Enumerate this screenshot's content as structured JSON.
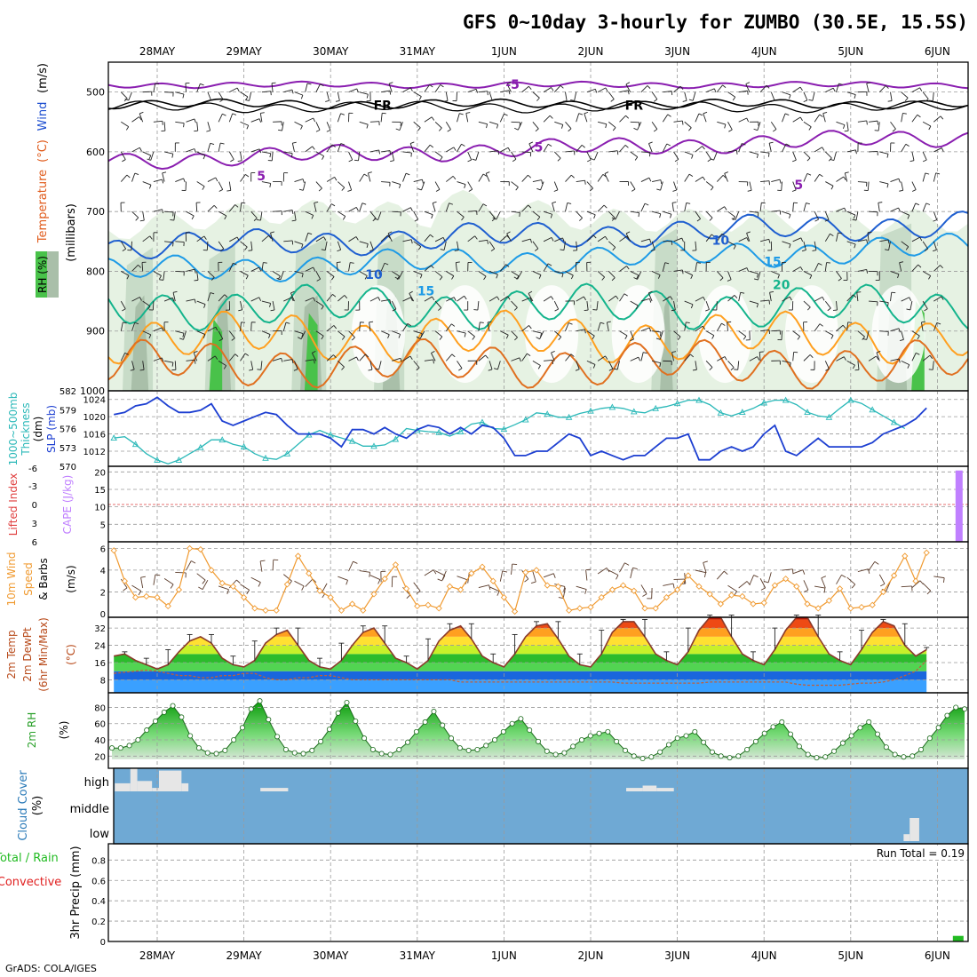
{
  "header": {
    "title": "GFS 0~10day 3-hourly for ZUMBO (30.5E, 15.5S)"
  },
  "footer": {
    "credit": "GrADS: COLA/IGES"
  },
  "colors": {
    "frame": "#000000",
    "grid": "#9a9a9a",
    "rh_light": "#e6f2e3",
    "rh_mid": "#c8dcc8",
    "rh_dark": "#a9bfa9",
    "rh_green": "#49c24a",
    "iso_m5": "#8a1eb0",
    "iso_fr": "#000000",
    "iso_10": "#1f5fd0",
    "iso_15": "#1e9be6",
    "iso_20": "#14b48c",
    "iso_25": "#ffa020",
    "iso_30": "#e07020",
    "slp": "#1d3fd1",
    "thick": "#2ab8b8",
    "li": "#e04040",
    "cape": "#c080ff",
    "wind10": "#f09a30",
    "temp_line": "#8a3a2a",
    "rh2m": "#2aa02a",
    "cloud_bg": "#6fa9d4",
    "cloud_bar": "#e6e6e6",
    "precip": "#22bb22"
  },
  "chart_data": [
    {
      "id": "upper_air",
      "type": "heatmap",
      "ylabel_parts": [
        "RH (%)",
        "Temperature",
        "(°C)",
        "Wind",
        "(m/s)"
      ],
      "ylabel_units": "(millibars)",
      "y_ticks": [
        500,
        600,
        700,
        800,
        900,
        1000
      ],
      "ylim": [
        450,
        1000
      ],
      "x_days": [
        "28MAY",
        "29MAY",
        "30MAY",
        "31MAY",
        "1JUN",
        "2JUN",
        "3JUN",
        "4JUN",
        "5JUN",
        "6JUN"
      ],
      "isotherm_labels": [
        {
          "t": 4.1,
          "p": 487,
          "text": "-5",
          "color_key": "iso_m5"
        },
        {
          "t": 2.6,
          "p": 522,
          "text": "FR",
          "color_key": "iso_fr"
        },
        {
          "t": 5.5,
          "p": 522,
          "text": "FR",
          "color_key": "iso_fr"
        },
        {
          "t": 4.4,
          "p": 592,
          "text": "5",
          "color_key": "iso_m5"
        },
        {
          "t": 1.2,
          "p": 640,
          "text": "5",
          "color_key": "iso_m5"
        },
        {
          "t": 7.4,
          "p": 655,
          "text": "5",
          "color_key": "iso_m5"
        },
        {
          "t": 6.5,
          "p": 748,
          "text": "10",
          "color_key": "iso_10"
        },
        {
          "t": 2.5,
          "p": 805,
          "text": "10",
          "color_key": "iso_10"
        },
        {
          "t": 7.1,
          "p": 784,
          "text": "15",
          "color_key": "iso_15"
        },
        {
          "t": 3.1,
          "p": 833,
          "text": "15",
          "color_key": "iso_15"
        },
        {
          "t": 7.2,
          "p": 822,
          "text": "20",
          "color_key": "iso_20"
        }
      ]
    },
    {
      "id": "slp_thickness",
      "type": "line",
      "ylabel_left": [
        "1000~500mb",
        "Thickness",
        "(dm)"
      ],
      "ylabel_right": "SLP (mb)",
      "left_ticks": [
        570,
        573,
        576,
        579,
        582
      ],
      "right_ticks": [
        1012,
        1016,
        1020,
        1024
      ],
      "ylim_slp": [
        1008.5,
        1026
      ],
      "ylim_thick": [
        570,
        582
      ],
      "series": [
        {
          "name": "SLP (mb)",
          "color_key": "slp",
          "values": [
            1020.5,
            1021,
            1022.5,
            1023,
            1024.5,
            1022.5,
            1021,
            1021,
            1021.5,
            1023,
            1019,
            1018,
            1019,
            1020,
            1021,
            1020.5,
            1018,
            1016,
            1016,
            1016,
            1015,
            1013,
            1017,
            1017,
            1016,
            1017.5,
            1016,
            1015,
            1017,
            1018,
            1017.5,
            1016,
            1017.5,
            1016,
            1018,
            1017.5,
            1015,
            1011,
            1011,
            1012,
            1012,
            1014,
            1016,
            1015,
            1011,
            1012,
            1011,
            1010,
            1011,
            1011,
            1013,
            1015,
            1015,
            1016,
            1010,
            1010,
            1012,
            1013,
            1012,
            1013,
            1016,
            1018,
            1012,
            1011,
            1013,
            1015,
            1013,
            1013,
            1013,
            1013,
            1014,
            1016,
            1017,
            1018,
            1019.5,
            1022
          ]
        },
        {
          "name": "1000~500mb Thickness (dm)",
          "color_key": "thick",
          "values": [
            574.5,
            574.7,
            573.5,
            572,
            571,
            570.4,
            571,
            572,
            573,
            574.2,
            574.2,
            573.5,
            573.1,
            572,
            571.3,
            571.1,
            572,
            573.5,
            575,
            575.7,
            575,
            574.5,
            574,
            573.2,
            573.2,
            573.4,
            574.3,
            576,
            575.7,
            575.5,
            575.4,
            574.8,
            575.5,
            576.7,
            577,
            576,
            575.9,
            576.6,
            577.4,
            578.5,
            578.3,
            577.8,
            577.8,
            578.4,
            578.8,
            579.2,
            579.4,
            579.2,
            578.7,
            578.5,
            579.2,
            579.5,
            580,
            580.5,
            580.5,
            579.8,
            578.5,
            578,
            578.6,
            579.2,
            580.1,
            580.5,
            580.5,
            579.8,
            578.6,
            578,
            577.8,
            579.2,
            580.5,
            580,
            579,
            578,
            577,
            576
          ]
        }
      ]
    },
    {
      "id": "stability",
      "type": "line",
      "ylabel_left": [
        "Lifted Index"
      ],
      "ylabel_right": "CAPE (J/kg)",
      "li_ticks": [
        "-6",
        "-3",
        "0",
        "3",
        "6"
      ],
      "cape_ticks": [
        5,
        10,
        15,
        20
      ],
      "ylim_cape": [
        0,
        21.6
      ],
      "series": [
        {
          "name": "Lifted Index",
          "color_key": "li",
          "values": [
            0
          ]
        },
        {
          "name": "CAPE (J/kg)",
          "color_key": "cape",
          "bars": [
            {
              "t": 9.25,
              "value": 20.4
            }
          ]
        }
      ]
    },
    {
      "id": "wind10m",
      "type": "line",
      "ylabel_left": [
        "10m Wind",
        "Speed",
        "& Barbs",
        "(m/s)"
      ],
      "y_ticks": [
        0,
        2,
        4,
        6
      ],
      "ylim": [
        0,
        6.6
      ],
      "series": [
        {
          "name": "10m Wind Speed",
          "color_key": "wind10",
          "values": [
            5.8,
            3,
            1.5,
            1.6,
            1.5,
            0.7,
            2.2,
            6,
            5.9,
            4,
            2.8,
            2.5,
            1.5,
            0.5,
            0.3,
            0.3,
            2.7,
            5.3,
            3.7,
            2.1,
            1.5,
            0.3,
            0.9,
            0.3,
            1.8,
            3.2,
            4.5,
            2.3,
            0.7,
            0.8,
            0.5,
            2.5,
            2.2,
            3.7,
            4.3,
            3,
            1.5,
            0.2,
            3.8,
            4,
            2.6,
            2.5,
            0.3,
            0.5,
            0.6,
            1.5,
            2.2,
            2.6,
            2.1,
            0.5,
            0.5,
            1.5,
            2.2,
            3.5,
            2.5,
            1.8,
            0.9,
            1.7,
            1.6,
            0.9,
            1,
            2.6,
            3.2,
            2.5,
            0.9,
            0.5,
            1.2,
            2.3,
            0.5,
            0.6,
            0.8,
            2,
            3.5,
            5.3,
            3,
            5.6
          ]
        }
      ]
    },
    {
      "id": "temp2m",
      "type": "area",
      "ylabel_left": [
        "2m Temp",
        "2m DewPt",
        "(6hr Min/Max)",
        "(°C)"
      ],
      "y_ticks": [
        8,
        16,
        24,
        32
      ],
      "ylim": [
        2,
        37
      ],
      "series": [
        {
          "name": "2m Temp",
          "color_key": "temp_line",
          "values": [
            19,
            20,
            17,
            15,
            13,
            15,
            21,
            26,
            28,
            25,
            18,
            15,
            14,
            17,
            25,
            29,
            31,
            24,
            17,
            14,
            13,
            17,
            24,
            30,
            32,
            25,
            18,
            16,
            13,
            17,
            26,
            31,
            33,
            27,
            19,
            16,
            14,
            20,
            28,
            33,
            34,
            27,
            19,
            15,
            14,
            20,
            30,
            35,
            35,
            28,
            20,
            17,
            15,
            21,
            31,
            37,
            37,
            28,
            20,
            17,
            15,
            22,
            31,
            37,
            37,
            28,
            20,
            17,
            15,
            22,
            30,
            35,
            33,
            24,
            19,
            22
          ]
        },
        {
          "name": "2m DewPt",
          "color_key": "temp_line",
          "values": [
            11,
            11.5,
            12,
            12.5,
            12,
            11,
            10,
            10,
            9,
            9,
            10,
            10,
            11,
            11,
            9,
            8,
            8,
            9,
            9,
            10,
            10,
            9,
            8,
            8,
            8,
            8,
            8,
            8,
            8,
            8,
            8,
            8,
            7,
            7,
            7,
            7,
            7,
            7,
            7,
            7,
            7,
            7,
            7,
            7,
            7,
            7,
            7,
            6.5,
            6.5,
            6.5,
            6.5,
            6.5,
            6.5,
            6.5,
            6.5,
            7,
            7,
            7,
            7,
            7,
            7,
            7,
            7,
            6,
            5.5,
            5.5,
            5.5,
            5.5,
            6,
            6.5,
            6.5,
            7,
            8,
            10,
            12,
            17
          ]
        }
      ]
    },
    {
      "id": "rh2m",
      "type": "area",
      "ylabel_left": [
        "2m RH",
        "(%)"
      ],
      "y_ticks": [
        20,
        40,
        60,
        80
      ],
      "ylim": [
        5,
        98
      ],
      "series": [
        {
          "name": "2m RH",
          "color_key": "rh2m",
          "values": [
            30,
            30,
            33,
            40,
            52,
            63,
            74,
            82,
            68,
            45,
            30,
            24,
            23,
            27,
            40,
            55,
            78,
            88,
            65,
            44,
            28,
            24,
            23,
            27,
            38,
            53,
            73,
            86,
            63,
            42,
            28,
            23,
            22,
            28,
            37,
            50,
            62,
            75,
            58,
            42,
            30,
            27,
            28,
            33,
            40,
            50,
            60,
            66,
            52,
            38,
            26,
            22,
            24,
            32,
            40,
            45,
            48,
            50,
            38,
            27,
            20,
            17,
            19,
            25,
            34,
            42,
            45,
            50,
            37,
            25,
            20,
            18,
            20,
            28,
            38,
            48,
            56,
            62,
            47,
            32,
            22,
            18,
            19,
            26,
            36,
            45,
            55,
            62,
            47,
            31,
            22,
            19,
            20,
            28,
            42,
            55,
            70,
            80,
            78
          ]
        }
      ]
    },
    {
      "id": "cloud",
      "type": "bar",
      "ylabel_left": [
        "Cloud Cover",
        "(%)"
      ],
      "levels": [
        "high",
        "middle",
        "low"
      ],
      "bars": [
        {
          "level": "high",
          "t0": 0.0,
          "t1": 0.18,
          "value": 35
        },
        {
          "level": "high",
          "t0": 0.18,
          "t1": 0.26,
          "value": 100
        },
        {
          "level": "high",
          "t0": 0.26,
          "t1": 0.43,
          "value": 45
        },
        {
          "level": "high",
          "t0": 0.43,
          "t1": 0.51,
          "value": 15
        },
        {
          "level": "high",
          "t0": 0.51,
          "t1": 0.77,
          "value": 90
        },
        {
          "level": "high",
          "t0": 0.77,
          "t1": 0.85,
          "value": 35
        },
        {
          "level": "high",
          "t0": 1.68,
          "t1": 2.0,
          "value": 15
        },
        {
          "level": "high",
          "t0": 5.9,
          "t1": 6.09,
          "value": 15
        },
        {
          "level": "high",
          "t0": 6.09,
          "t1": 6.25,
          "value": 25
        },
        {
          "level": "high",
          "t0": 6.25,
          "t1": 6.45,
          "value": 15
        },
        {
          "level": "low",
          "t0": 9.1,
          "t1": 9.17,
          "value": 30
        },
        {
          "level": "low",
          "t0": 9.17,
          "t1": 9.28,
          "value": 100
        }
      ]
    },
    {
      "id": "precip",
      "type": "bar",
      "ylabel_left": [
        "Total / Rain",
        "Convective",
        "3hr Precip (mm)"
      ],
      "y_ticks": [
        "0",
        "0.2",
        "0.4",
        "0.6",
        "0.8"
      ],
      "ylim": [
        0,
        0.96
      ],
      "annotation": "Run Total = 0.19",
      "bars": [
        {
          "t": 9.24,
          "value": 0.055
        }
      ]
    }
  ]
}
